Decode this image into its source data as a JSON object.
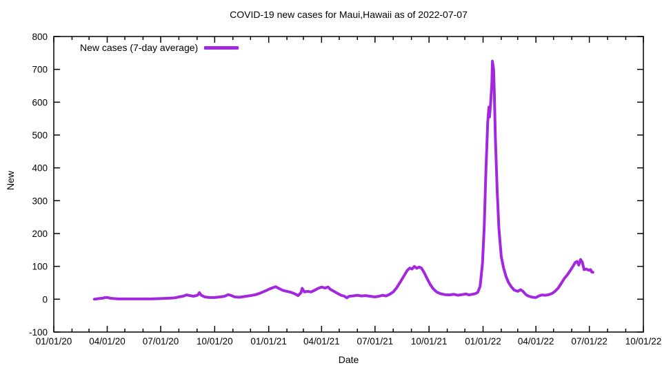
{
  "page": {
    "background": "#ffffff"
  },
  "chart_data": {
    "type": "line",
    "title": "COVID-19 new cases for Maui,Hawaii as of 2022-07-07",
    "xlabel": "Date",
    "ylabel": "New",
    "ylim": [
      -100,
      800
    ],
    "y_tick_step": 100,
    "y_tick_labels": [
      "-100",
      "0",
      "100",
      "200",
      "300",
      "400",
      "500",
      "600",
      "700",
      "800"
    ],
    "x_range": [
      "2020-01-01",
      "2022-10-01"
    ],
    "x_ticks": [
      {
        "date": "2020-01-01",
        "label": "01/01/20"
      },
      {
        "date": "2020-04-01",
        "label": "04/01/20"
      },
      {
        "date": "2020-07-01",
        "label": "07/01/20"
      },
      {
        "date": "2020-10-01",
        "label": "10/01/20"
      },
      {
        "date": "2021-01-01",
        "label": "01/01/21"
      },
      {
        "date": "2021-04-01",
        "label": "04/01/21"
      },
      {
        "date": "2021-07-01",
        "label": "07/01/21"
      },
      {
        "date": "2021-10-01",
        "label": "10/01/21"
      },
      {
        "date": "2022-01-01",
        "label": "01/01/22"
      },
      {
        "date": "2022-04-01",
        "label": "04/01/22"
      },
      {
        "date": "2022-07-01",
        "label": "07/01/22"
      },
      {
        "date": "2022-10-01",
        "label": "10/01/22"
      }
    ],
    "x_minor_tick_interval_months": 1,
    "grid": false,
    "axis_color": "#000000",
    "legend": {
      "label": "New cases (7-day average)",
      "position": "top-left-inside"
    },
    "series": [
      {
        "name": "New cases (7-day average)",
        "color": "#a228e0",
        "line_width": 4,
        "points": [
          [
            "2020-03-10",
            0
          ],
          [
            "2020-03-14",
            1
          ],
          [
            "2020-03-18",
            2
          ],
          [
            "2020-03-24",
            3
          ],
          [
            "2020-03-28",
            5
          ],
          [
            "2020-04-02",
            5
          ],
          [
            "2020-04-06",
            3
          ],
          [
            "2020-04-12",
            2
          ],
          [
            "2020-04-20",
            1
          ],
          [
            "2020-05-01",
            1
          ],
          [
            "2020-05-15",
            1
          ],
          [
            "2020-06-01",
            1
          ],
          [
            "2020-06-15",
            1
          ],
          [
            "2020-07-01",
            2
          ],
          [
            "2020-07-15",
            3
          ],
          [
            "2020-07-25",
            4
          ],
          [
            "2020-08-01",
            7
          ],
          [
            "2020-08-08",
            9
          ],
          [
            "2020-08-14",
            13
          ],
          [
            "2020-08-20",
            11
          ],
          [
            "2020-08-26",
            9
          ],
          [
            "2020-09-02",
            12
          ],
          [
            "2020-09-05",
            20
          ],
          [
            "2020-09-08",
            12
          ],
          [
            "2020-09-14",
            7
          ],
          [
            "2020-09-22",
            5
          ],
          [
            "2020-10-01",
            5
          ],
          [
            "2020-10-10",
            7
          ],
          [
            "2020-10-18",
            9
          ],
          [
            "2020-10-24",
            14
          ],
          [
            "2020-10-28",
            12
          ],
          [
            "2020-11-04",
            7
          ],
          [
            "2020-11-12",
            6
          ],
          [
            "2020-11-20",
            8
          ],
          [
            "2020-12-01",
            11
          ],
          [
            "2020-12-10",
            14
          ],
          [
            "2020-12-18",
            19
          ],
          [
            "2020-12-26",
            25
          ],
          [
            "2021-01-01",
            30
          ],
          [
            "2021-01-08",
            35
          ],
          [
            "2021-01-13",
            38
          ],
          [
            "2021-01-18",
            33
          ],
          [
            "2021-01-25",
            27
          ],
          [
            "2021-02-01",
            24
          ],
          [
            "2021-02-08",
            21
          ],
          [
            "2021-02-15",
            16
          ],
          [
            "2021-02-20",
            11
          ],
          [
            "2021-02-25",
            20
          ],
          [
            "2021-02-27",
            33
          ],
          [
            "2021-03-03",
            22
          ],
          [
            "2021-03-08",
            24
          ],
          [
            "2021-03-14",
            22
          ],
          [
            "2021-03-20",
            27
          ],
          [
            "2021-03-26",
            33
          ],
          [
            "2021-04-01",
            37
          ],
          [
            "2021-04-07",
            34
          ],
          [
            "2021-04-12",
            37
          ],
          [
            "2021-04-16",
            30
          ],
          [
            "2021-04-22",
            24
          ],
          [
            "2021-04-28",
            18
          ],
          [
            "2021-05-04",
            12
          ],
          [
            "2021-05-10",
            9
          ],
          [
            "2021-05-14",
            4
          ],
          [
            "2021-05-18",
            9
          ],
          [
            "2021-05-24",
            10
          ],
          [
            "2021-06-01",
            12
          ],
          [
            "2021-06-08",
            10
          ],
          [
            "2021-06-15",
            11
          ],
          [
            "2021-06-22",
            9
          ],
          [
            "2021-07-01",
            7
          ],
          [
            "2021-07-08",
            9
          ],
          [
            "2021-07-14",
            12
          ],
          [
            "2021-07-20",
            10
          ],
          [
            "2021-07-26",
            15
          ],
          [
            "2021-08-01",
            22
          ],
          [
            "2021-08-07",
            35
          ],
          [
            "2021-08-13",
            52
          ],
          [
            "2021-08-19",
            70
          ],
          [
            "2021-08-25",
            88
          ],
          [
            "2021-08-29",
            95
          ],
          [
            "2021-09-02",
            92
          ],
          [
            "2021-09-06",
            100
          ],
          [
            "2021-09-10",
            94
          ],
          [
            "2021-09-14",
            98
          ],
          [
            "2021-09-18",
            95
          ],
          [
            "2021-09-23",
            80
          ],
          [
            "2021-09-28",
            62
          ],
          [
            "2021-10-03",
            45
          ],
          [
            "2021-10-08",
            32
          ],
          [
            "2021-10-14",
            22
          ],
          [
            "2021-10-20",
            17
          ],
          [
            "2021-10-28",
            14
          ],
          [
            "2021-11-05",
            13
          ],
          [
            "2021-11-12",
            15
          ],
          [
            "2021-11-19",
            12
          ],
          [
            "2021-11-26",
            14
          ],
          [
            "2021-12-03",
            16
          ],
          [
            "2021-12-08",
            13
          ],
          [
            "2021-12-14",
            15
          ],
          [
            "2021-12-19",
            17
          ],
          [
            "2021-12-23",
            21
          ],
          [
            "2021-12-27",
            40
          ],
          [
            "2021-12-31",
            110
          ],
          [
            "2022-01-03",
            220
          ],
          [
            "2022-01-06",
            400
          ],
          [
            "2022-01-09",
            540
          ],
          [
            "2022-01-11",
            585
          ],
          [
            "2022-01-12",
            555
          ],
          [
            "2022-01-14",
            600
          ],
          [
            "2022-01-16",
            660
          ],
          [
            "2022-01-17",
            725
          ],
          [
            "2022-01-19",
            700
          ],
          [
            "2022-01-20",
            640
          ],
          [
            "2022-01-22",
            490
          ],
          [
            "2022-01-25",
            330
          ],
          [
            "2022-01-28",
            215
          ],
          [
            "2022-02-01",
            130
          ],
          [
            "2022-02-05",
            95
          ],
          [
            "2022-02-09",
            70
          ],
          [
            "2022-02-13",
            52
          ],
          [
            "2022-02-18",
            38
          ],
          [
            "2022-02-23",
            28
          ],
          [
            "2022-03-01",
            24
          ],
          [
            "2022-03-06",
            29
          ],
          [
            "2022-03-10",
            24
          ],
          [
            "2022-03-15",
            14
          ],
          [
            "2022-03-20",
            9
          ],
          [
            "2022-03-26",
            6
          ],
          [
            "2022-04-01",
            5
          ],
          [
            "2022-04-06",
            10
          ],
          [
            "2022-04-11",
            13
          ],
          [
            "2022-04-17",
            12
          ],
          [
            "2022-04-23",
            14
          ],
          [
            "2022-04-29",
            18
          ],
          [
            "2022-05-04",
            25
          ],
          [
            "2022-05-09",
            34
          ],
          [
            "2022-05-14",
            48
          ],
          [
            "2022-05-19",
            62
          ],
          [
            "2022-05-24",
            73
          ],
          [
            "2022-05-29",
            86
          ],
          [
            "2022-06-03",
            100
          ],
          [
            "2022-06-07",
            112
          ],
          [
            "2022-06-10",
            115
          ],
          [
            "2022-06-13",
            104
          ],
          [
            "2022-06-16",
            121
          ],
          [
            "2022-06-19",
            113
          ],
          [
            "2022-06-22",
            90
          ],
          [
            "2022-06-26",
            92
          ],
          [
            "2022-06-30",
            88
          ],
          [
            "2022-07-03",
            90
          ],
          [
            "2022-07-05",
            83
          ],
          [
            "2022-07-07",
            82
          ]
        ]
      }
    ]
  }
}
